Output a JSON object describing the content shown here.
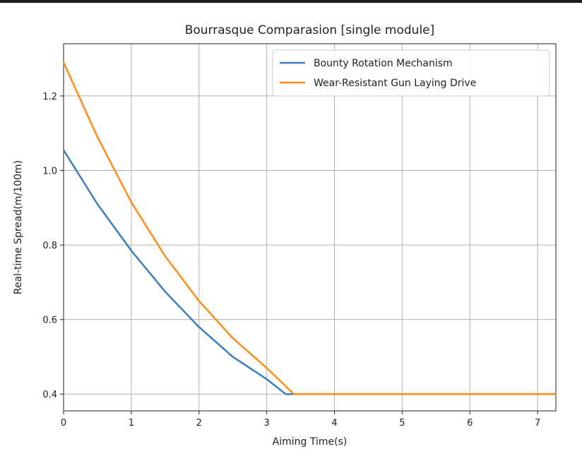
{
  "chart_data": {
    "type": "line",
    "title": "Bourrasque Comparasion [single module]",
    "xlabel": "Aiming Time(s)",
    "ylabel": "Real-time Spread(m/100m)",
    "xlim": [
      0,
      7.27
    ],
    "ylim": [
      0.355,
      1.34
    ],
    "x_ticks": [
      "0",
      "1",
      "2",
      "3",
      "4",
      "5",
      "6",
      "7"
    ],
    "y_ticks": [
      "0.4",
      "0.6",
      "0.8",
      "1.0",
      "1.2"
    ],
    "grid": true,
    "legend_position": "upper right",
    "series": [
      {
        "name": "Bounty Rotation Mechanism",
        "color": "#3a7ebf",
        "x": [
          0,
          0.5,
          1,
          1.5,
          2,
          2.5,
          3,
          3.28,
          4,
          5,
          6,
          7.27
        ],
        "y": [
          1.055,
          0.91,
          0.785,
          0.675,
          0.58,
          0.5,
          0.44,
          0.4,
          0.4,
          0.4,
          0.4,
          0.4
        ]
      },
      {
        "name": "Wear-Resistant Gun Laying Drive",
        "color": "#ff8c1a",
        "x": [
          0,
          0.5,
          1,
          1.5,
          2,
          2.5,
          3,
          3.4,
          4,
          5,
          6,
          7.27
        ],
        "y": [
          1.29,
          1.09,
          0.915,
          0.77,
          0.65,
          0.55,
          0.47,
          0.4,
          0.4,
          0.4,
          0.4,
          0.4
        ]
      }
    ]
  }
}
